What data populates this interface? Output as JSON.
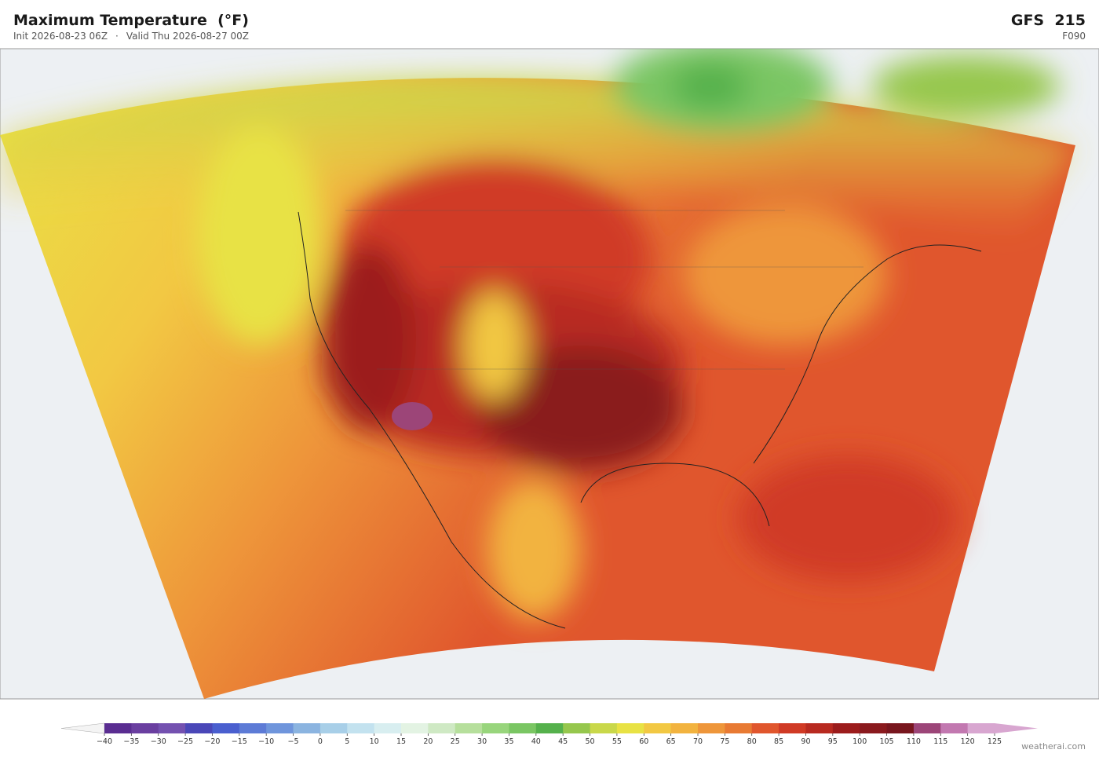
{
  "header": {
    "title": "Maximum Temperature  (°F)",
    "init": "Init 2026-08-23 06Z",
    "separator": "·",
    "valid": "Valid Thu 2026-08-27 00Z",
    "model": "GFS  215",
    "forecast_hour": "F090"
  },
  "colorbar": {
    "ticks": [
      {
        "value": -40,
        "label": "−40"
      },
      {
        "value": -35,
        "label": "−35"
      },
      {
        "value": -30,
        "label": "−30"
      },
      {
        "value": -25,
        "label": "−25"
      },
      {
        "value": -20,
        "label": "−20"
      },
      {
        "value": -15,
        "label": "−15"
      },
      {
        "value": -10,
        "label": "−10"
      },
      {
        "value": -5,
        "label": "−5"
      },
      0,
      5,
      10,
      15,
      20,
      25,
      30,
      35,
      40,
      45,
      50,
      55,
      60,
      65,
      70,
      75,
      80,
      85,
      90,
      95,
      100,
      105,
      110,
      115,
      120,
      125
    ],
    "colors": [
      "#5a2d91",
      "#6a3fa0",
      "#7451b0",
      "#4a47b8",
      "#4a5fcf",
      "#5d7bd6",
      "#6f95dc",
      "#8bb4e0",
      "#a8cfe8",
      "#c3e2ef",
      "#d8eef0",
      "#e3f3e3",
      "#cfe9c4",
      "#b6df9c",
      "#98d57c",
      "#7ac663",
      "#55b14c",
      "#96c74d",
      "#c9d84a",
      "#e8e244",
      "#f2c843",
      "#f2b33f",
      "#ee963a",
      "#e87a33",
      "#e0562d",
      "#d03a25",
      "#b82a20",
      "#9c1c1c",
      "#8a1a1e",
      "#78161e",
      "#9c4578",
      "#c278b0",
      "#d8a6d0"
    ],
    "under_color": "#f4f4f4",
    "over_color": "#d8a6d0"
  },
  "footer": {
    "credit": "weatherai.com"
  }
}
